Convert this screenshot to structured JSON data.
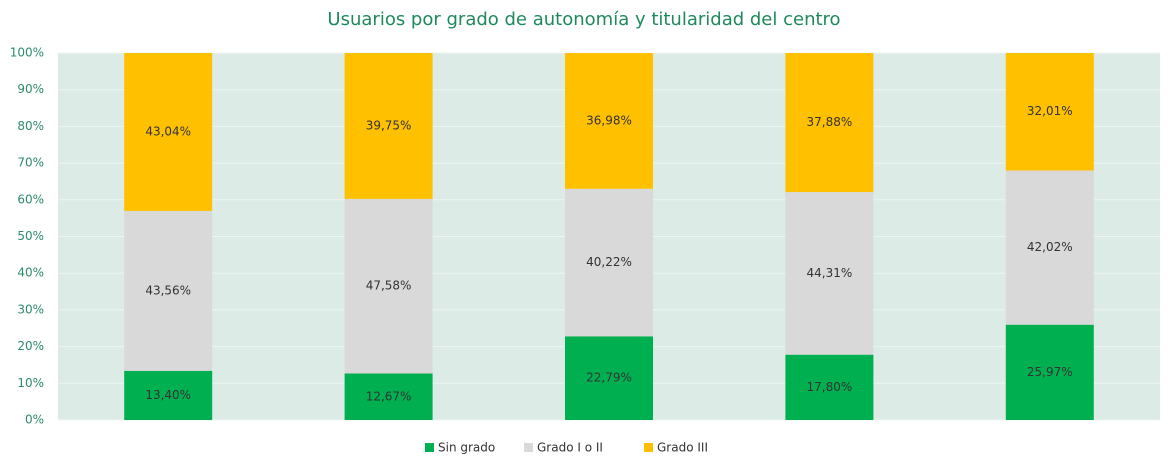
{
  "chart_data": {
    "type": "stacked_bar",
    "title": "Usuarios por grado de autonomía y titularidad del centro",
    "categories": [
      null,
      null,
      null,
      null,
      null
    ],
    "series": [
      {
        "name": "Sin grado",
        "color": "#00b050",
        "values": [
          13.4,
          12.67,
          22.79,
          17.8,
          25.97
        ],
        "value_labels": [
          "13,40%",
          "12,67%",
          "22,79%",
          "17,80%",
          "25,97%"
        ]
      },
      {
        "name": "Grado I o II",
        "color": "#d9d9d9",
        "values": [
          43.56,
          47.58,
          40.22,
          44.31,
          42.02
        ],
        "value_labels": [
          "43,56%",
          "47,58%",
          "40,22%",
          "44,31%",
          "42,02%"
        ]
      },
      {
        "name": "Grado III",
        "color": "#ffc000",
        "values": [
          43.04,
          39.75,
          36.98,
          37.88,
          32.01
        ],
        "value_labels": [
          "43,04%",
          "39,75%",
          "36,98%",
          "37,88%",
          "32,01%"
        ]
      }
    ],
    "ylim": [
      0,
      100
    ],
    "yticks": [
      {
        "value": 0,
        "label": "0%"
      },
      {
        "value": 10,
        "label": "10%"
      },
      {
        "value": 20,
        "label": "20%"
      },
      {
        "value": 30,
        "label": "30%"
      },
      {
        "value": 40,
        "label": "40%"
      },
      {
        "value": 50,
        "label": "50%"
      },
      {
        "value": 60,
        "label": "60%"
      },
      {
        "value": 70,
        "label": "70%"
      },
      {
        "value": 80,
        "label": "80%"
      },
      {
        "value": 90,
        "label": "90%"
      },
      {
        "value": 100,
        "label": "100%"
      }
    ],
    "grid": true,
    "legend": "bottom"
  }
}
